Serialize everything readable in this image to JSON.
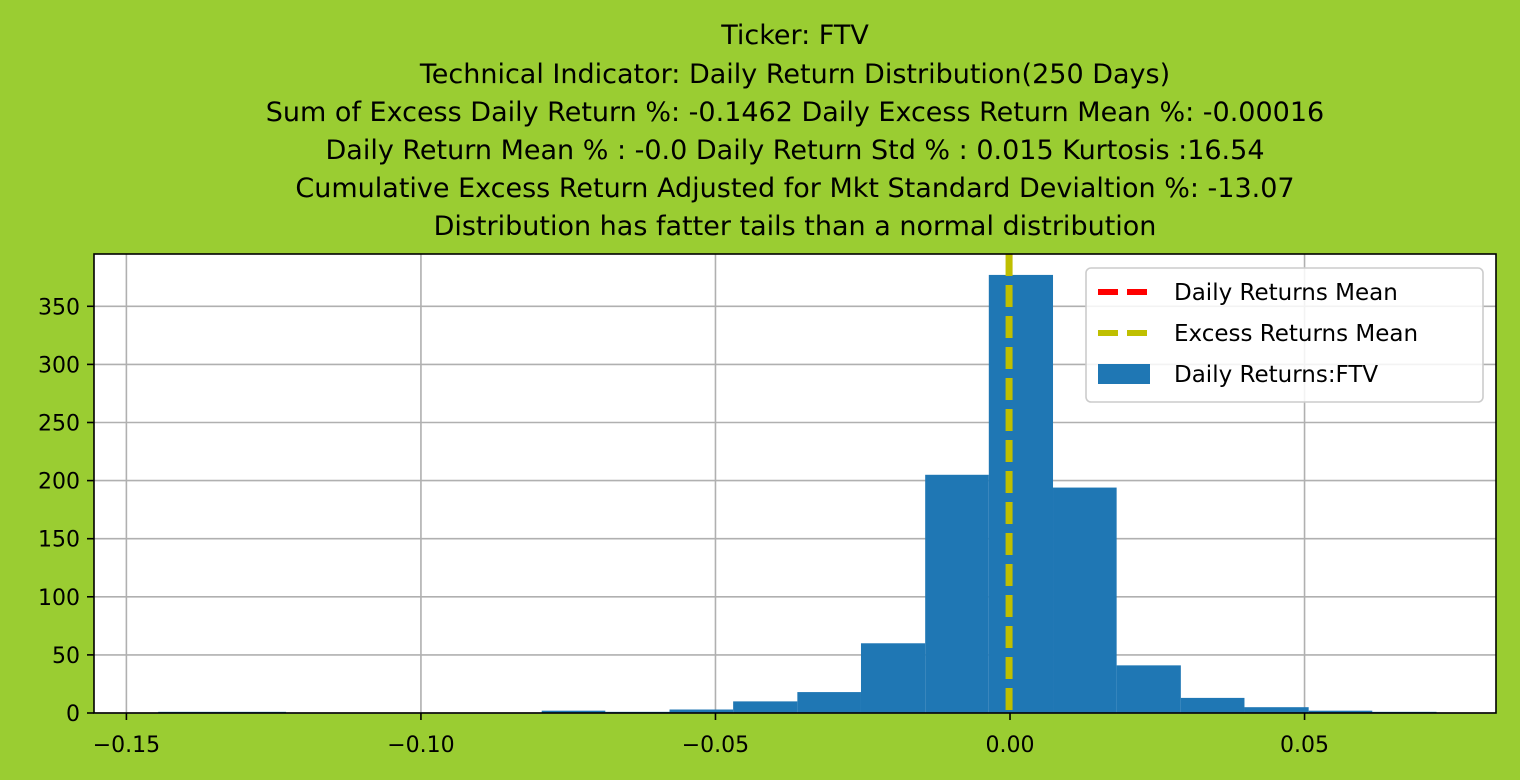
{
  "background_color": "#9acd32",
  "chart_data": {
    "type": "bar",
    "title_lines": [
      "Ticker: FTV",
      "Technical Indicator: Daily Return Distribution(250 Days)",
      "Sum of Excess Daily Return %: -0.1462   Daily Excess Return Mean %: -0.00016",
      "Daily Return Mean % : -0.0    Daily Return Std % : 0.015  Kurtosis :16.54",
      "Cumulative Excess Return Adjusted for Mkt Standard Devialtion %: -13.07",
      "Distribution has fatter tails than a normal distribution"
    ],
    "xlim": [
      -0.1555,
      0.0825
    ],
    "ylim": [
      0,
      395
    ],
    "x_ticks": [
      -0.15,
      -0.1,
      -0.05,
      0.0,
      0.05
    ],
    "x_tick_labels": [
      "−0.15",
      "−0.10",
      "−0.05",
      "0.00",
      "0.05"
    ],
    "y_ticks": [
      0,
      50,
      100,
      150,
      200,
      250,
      300,
      350
    ],
    "y_tick_labels": [
      "0",
      "50",
      "100",
      "150",
      "200",
      "250",
      "300",
      "350"
    ],
    "grid": true,
    "bars": [
      {
        "x0": -0.1446,
        "x1": -0.1337,
        "count": 1
      },
      {
        "x0": -0.1337,
        "x1": -0.1229,
        "count": 1
      },
      {
        "x0": -0.0795,
        "x1": -0.0687,
        "count": 2
      },
      {
        "x0": -0.0687,
        "x1": -0.0578,
        "count": 1
      },
      {
        "x0": -0.0578,
        "x1": -0.047,
        "count": 3
      },
      {
        "x0": -0.047,
        "x1": -0.0361,
        "count": 10
      },
      {
        "x0": -0.0361,
        "x1": -0.0253,
        "count": 18
      },
      {
        "x0": -0.0253,
        "x1": -0.0144,
        "count": 60
      },
      {
        "x0": -0.0144,
        "x1": -0.0036,
        "count": 205
      },
      {
        "x0": -0.0036,
        "x1": 0.0073,
        "count": 377
      },
      {
        "x0": 0.0073,
        "x1": 0.0181,
        "count": 194
      },
      {
        "x0": 0.0181,
        "x1": 0.029,
        "count": 41
      },
      {
        "x0": 0.029,
        "x1": 0.0398,
        "count": 13
      },
      {
        "x0": 0.0398,
        "x1": 0.0507,
        "count": 5
      },
      {
        "x0": 0.0507,
        "x1": 0.0615,
        "count": 2
      },
      {
        "x0": 0.0615,
        "x1": 0.0724,
        "count": 1
      }
    ],
    "bar_color": "#1f77b4",
    "vlines": [
      {
        "name": "Daily Returns Mean",
        "x": 0.0,
        "color": "#ff0000"
      },
      {
        "name": "Excess Returns Mean",
        "x": -0.00016,
        "color": "#bfbf00"
      }
    ],
    "legend": {
      "position": "top-right",
      "entries": [
        {
          "label": "Daily Returns Mean",
          "kind": "dashed-line",
          "color": "#ff0000"
        },
        {
          "label": "Excess Returns Mean",
          "kind": "dashed-line",
          "color": "#bfbf00"
        },
        {
          "label": "Daily Returns:FTV",
          "kind": "patch",
          "color": "#1f77b4"
        }
      ]
    }
  }
}
